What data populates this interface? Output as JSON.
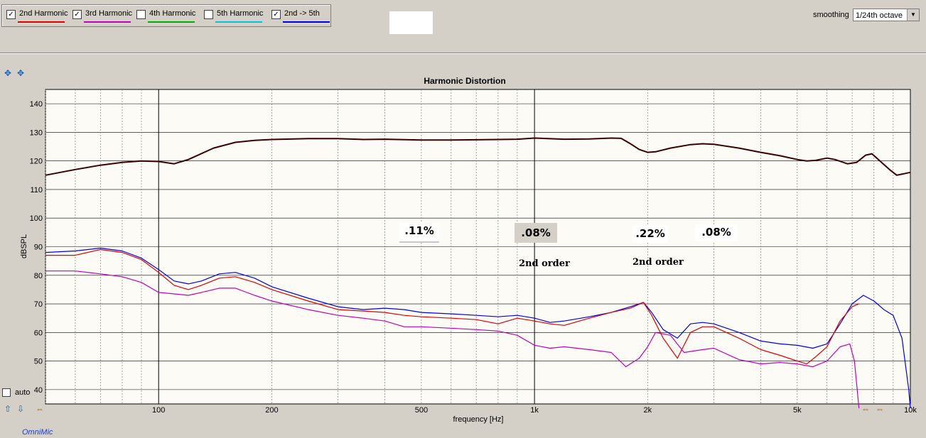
{
  "legend": {
    "items": [
      {
        "label": "2nd Harmonic",
        "checked": true,
        "color": "#e00000"
      },
      {
        "label": "3rd Harmonic",
        "checked": true,
        "color": "#c000c0"
      },
      {
        "label": "4th Harmonic",
        "checked": false,
        "color": "#00b000"
      },
      {
        "label": "5th Harmonic",
        "checked": false,
        "color": "#00c8d8"
      },
      {
        "label": "2nd -> 5th",
        "checked": true,
        "color": "#0000e0"
      }
    ],
    "check_mark": "✓"
  },
  "smoothing": {
    "label": "smoothing",
    "value": "1/24th octave"
  },
  "auto": {
    "label": "auto"
  },
  "brand": "OmniMic",
  "annotations": {
    "a1": ".11%",
    "a2": ".08%",
    "a2_sub": "2nd order",
    "a3": ".22%",
    "a3_sub": "2nd order",
    "a4": ".08%"
  },
  "chart_data": {
    "type": "line",
    "title": "Harmonic Distortion",
    "xlabel": "frequency [Hz]",
    "ylabel": "dBSPL",
    "x_scale": "log",
    "xlim": [
      50,
      10000
    ],
    "ylim": [
      35,
      145
    ],
    "yticks": [
      40,
      50,
      60,
      70,
      80,
      90,
      100,
      110,
      120,
      130,
      140
    ],
    "xticks": [
      {
        "value": 100,
        "label": "100"
      },
      {
        "value": 200,
        "label": "200"
      },
      {
        "value": 500,
        "label": "500"
      },
      {
        "value": 1000,
        "label": "1k"
      },
      {
        "value": 2000,
        "label": "2k"
      },
      {
        "value": 5000,
        "label": "5k"
      },
      {
        "value": 10000,
        "label": "10k"
      }
    ],
    "grid": true,
    "series": [
      {
        "name": "",
        "color": "#3a0000",
        "points": [
          [
            50,
            115
          ],
          [
            60,
            117
          ],
          [
            70,
            118.5
          ],
          [
            80,
            119.5
          ],
          [
            90,
            120
          ],
          [
            100,
            119.8
          ],
          [
            110,
            119
          ],
          [
            120,
            120.5
          ],
          [
            140,
            124.5
          ],
          [
            160,
            126.5
          ],
          [
            180,
            127.2
          ],
          [
            200,
            127.5
          ],
          [
            250,
            127.8
          ],
          [
            300,
            127.8
          ],
          [
            350,
            127.5
          ],
          [
            400,
            127.6
          ],
          [
            500,
            127.3
          ],
          [
            600,
            127.3
          ],
          [
            700,
            127.4
          ],
          [
            800,
            127.5
          ],
          [
            900,
            127.6
          ],
          [
            1000,
            128
          ],
          [
            1200,
            127.6
          ],
          [
            1400,
            127.7
          ],
          [
            1600,
            128
          ],
          [
            1700,
            127.9
          ],
          [
            1800,
            126
          ],
          [
            1900,
            124
          ],
          [
            2000,
            123
          ],
          [
            2100,
            123.2
          ],
          [
            2300,
            124.5
          ],
          [
            2600,
            125.7
          ],
          [
            2800,
            126
          ],
          [
            3000,
            125.8
          ],
          [
            3500,
            124.5
          ],
          [
            4000,
            123
          ],
          [
            4500,
            121.8
          ],
          [
            5000,
            120.5
          ],
          [
            5300,
            120
          ],
          [
            5600,
            120.2
          ],
          [
            6000,
            121
          ],
          [
            6300,
            120.5
          ],
          [
            6800,
            119
          ],
          [
            7200,
            119.5
          ],
          [
            7600,
            122
          ],
          [
            7900,
            122.5
          ],
          [
            8300,
            120
          ],
          [
            8800,
            117
          ],
          [
            9200,
            115
          ],
          [
            9600,
            115.5
          ],
          [
            10000,
            116
          ]
        ]
      },
      {
        "name": "2nd -> 5th",
        "color": "#0000e0",
        "points": [
          [
            50,
            88
          ],
          [
            60,
            88.5
          ],
          [
            70,
            89.5
          ],
          [
            80,
            88.5
          ],
          [
            90,
            86
          ],
          [
            100,
            82
          ],
          [
            110,
            78
          ],
          [
            120,
            77
          ],
          [
            130,
            78
          ],
          [
            145,
            80.5
          ],
          [
            160,
            81
          ],
          [
            180,
            79
          ],
          [
            200,
            76
          ],
          [
            250,
            72
          ],
          [
            300,
            69
          ],
          [
            350,
            68
          ],
          [
            400,
            68.5
          ],
          [
            450,
            68
          ],
          [
            500,
            67
          ],
          [
            600,
            66.5
          ],
          [
            700,
            66
          ],
          [
            800,
            65.5
          ],
          [
            900,
            66
          ],
          [
            1000,
            65
          ],
          [
            1100,
            63.5
          ],
          [
            1200,
            64
          ],
          [
            1400,
            65.5
          ],
          [
            1600,
            67
          ],
          [
            1800,
            69
          ],
          [
            1950,
            70.5
          ],
          [
            2050,
            67
          ],
          [
            2200,
            61
          ],
          [
            2400,
            58
          ],
          [
            2600,
            63
          ],
          [
            2800,
            63.5
          ],
          [
            3000,
            63
          ],
          [
            3500,
            60
          ],
          [
            4000,
            57
          ],
          [
            4500,
            56
          ],
          [
            5000,
            55.5
          ],
          [
            5500,
            54.5
          ],
          [
            6000,
            56
          ],
          [
            6500,
            63
          ],
          [
            7000,
            70
          ],
          [
            7500,
            73
          ],
          [
            8000,
            71
          ],
          [
            8500,
            68
          ],
          [
            9000,
            66
          ],
          [
            9500,
            58
          ],
          [
            9900,
            40
          ],
          [
            10000,
            33
          ]
        ]
      },
      {
        "name": "2nd Harmonic",
        "color": "#e00000",
        "points": [
          [
            50,
            87
          ],
          [
            60,
            87
          ],
          [
            70,
            89
          ],
          [
            80,
            88
          ],
          [
            90,
            85.5
          ],
          [
            100,
            81
          ],
          [
            110,
            76.5
          ],
          [
            120,
            75
          ],
          [
            130,
            76.5
          ],
          [
            145,
            79
          ],
          [
            160,
            79.5
          ],
          [
            180,
            77.5
          ],
          [
            200,
            75
          ],
          [
            250,
            71
          ],
          [
            300,
            68
          ],
          [
            350,
            67.5
          ],
          [
            400,
            67
          ],
          [
            450,
            66
          ],
          [
            500,
            65.5
          ],
          [
            600,
            65
          ],
          [
            700,
            64.5
          ],
          [
            800,
            63
          ],
          [
            900,
            65
          ],
          [
            1000,
            64
          ],
          [
            1100,
            63
          ],
          [
            1200,
            62.5
          ],
          [
            1400,
            65
          ],
          [
            1600,
            67
          ],
          [
            1800,
            68.5
          ],
          [
            1950,
            70.5
          ],
          [
            2050,
            66
          ],
          [
            2200,
            58
          ],
          [
            2400,
            51
          ],
          [
            2600,
            60
          ],
          [
            2800,
            62
          ],
          [
            3000,
            62
          ],
          [
            3500,
            58
          ],
          [
            4000,
            54
          ],
          [
            4500,
            52
          ],
          [
            5000,
            50
          ],
          [
            5300,
            49
          ],
          [
            5600,
            51.5
          ],
          [
            6000,
            55
          ],
          [
            6500,
            64
          ],
          [
            7000,
            69
          ],
          [
            7300,
            70
          ]
        ]
      },
      {
        "name": "3rd Harmonic",
        "color": "#c000c0",
        "points": [
          [
            50,
            81.5
          ],
          [
            60,
            81.5
          ],
          [
            70,
            80.5
          ],
          [
            80,
            79.5
          ],
          [
            90,
            77.5
          ],
          [
            100,
            74
          ],
          [
            110,
            73.5
          ],
          [
            120,
            73
          ],
          [
            130,
            74
          ],
          [
            145,
            75.5
          ],
          [
            160,
            75.5
          ],
          [
            180,
            73
          ],
          [
            200,
            71
          ],
          [
            250,
            68
          ],
          [
            300,
            66
          ],
          [
            350,
            65
          ],
          [
            400,
            64
          ],
          [
            450,
            62
          ],
          [
            500,
            62
          ],
          [
            600,
            61.5
          ],
          [
            700,
            61
          ],
          [
            800,
            60.5
          ],
          [
            900,
            59
          ],
          [
            1000,
            55.5
          ],
          [
            1100,
            54.5
          ],
          [
            1200,
            55
          ],
          [
            1400,
            54
          ],
          [
            1600,
            53
          ],
          [
            1750,
            48
          ],
          [
            1900,
            51
          ],
          [
            2000,
            55
          ],
          [
            2100,
            60
          ],
          [
            2300,
            59
          ],
          [
            2500,
            53
          ],
          [
            2800,
            54
          ],
          [
            3000,
            54.5
          ],
          [
            3500,
            50.5
          ],
          [
            4000,
            49
          ],
          [
            4500,
            49.5
          ],
          [
            5000,
            49
          ],
          [
            5500,
            48
          ],
          [
            6000,
            50
          ],
          [
            6500,
            55
          ],
          [
            6900,
            56
          ],
          [
            7100,
            50
          ],
          [
            7300,
            30
          ]
        ]
      }
    ]
  }
}
